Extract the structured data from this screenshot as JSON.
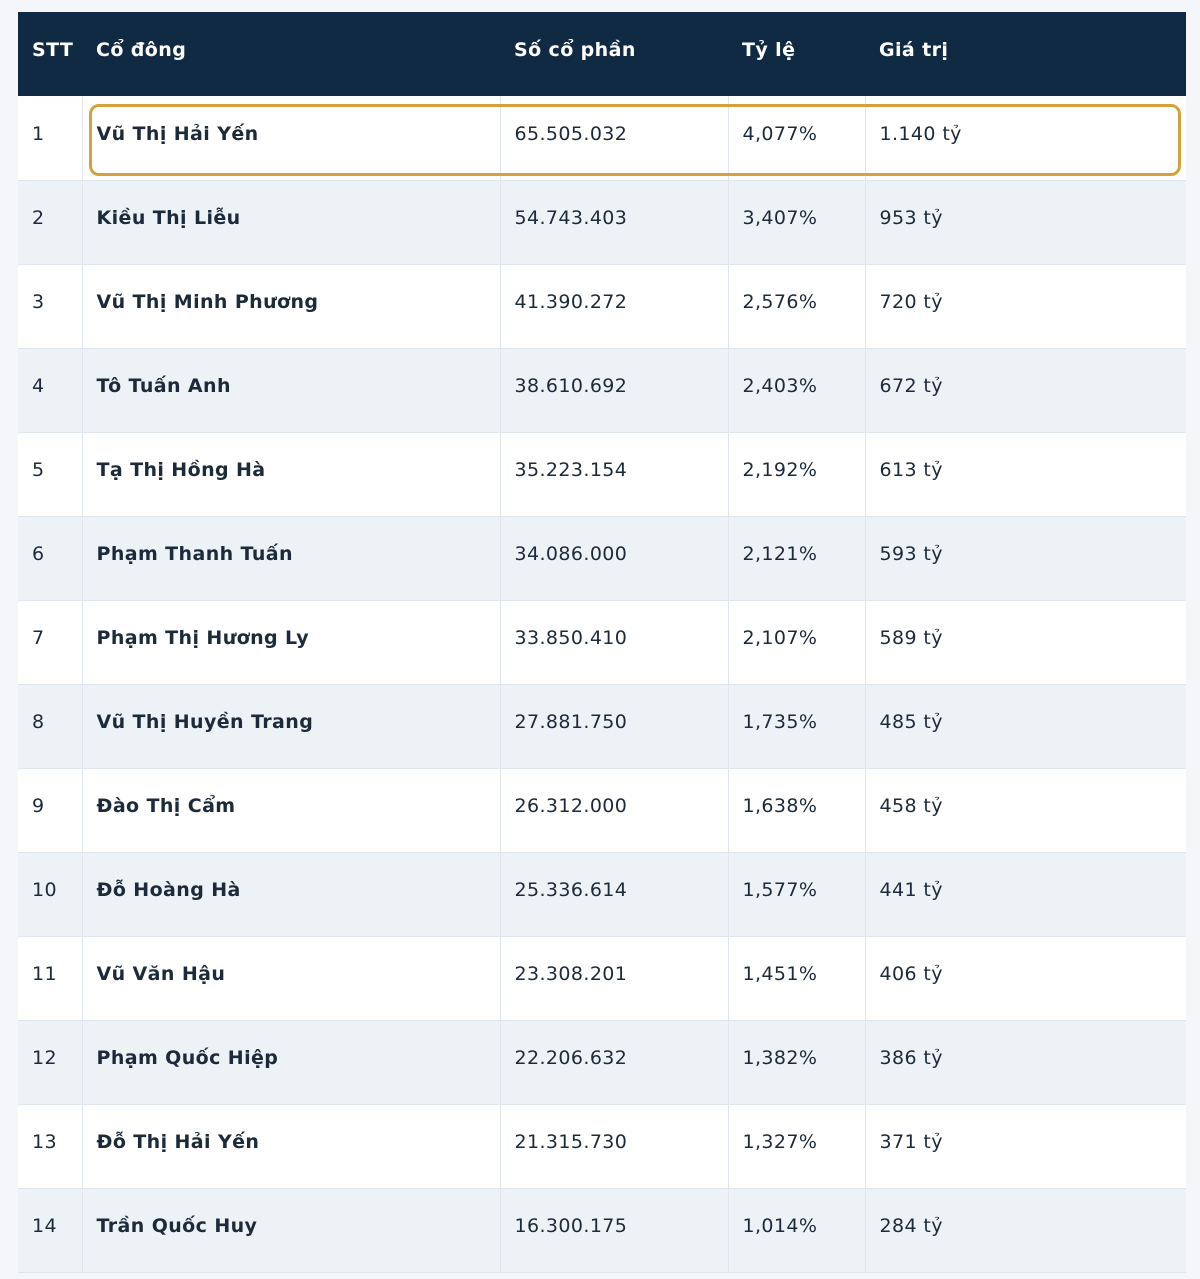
{
  "table": {
    "headers": {
      "stt": "STT",
      "name": "Cổ đông",
      "shares": "Số cổ phần",
      "ratio": "Tỷ lệ",
      "value": "Giá trị"
    },
    "highlight_color": "#d4a13a",
    "header_bg": "#112a44",
    "rows": [
      {
        "stt": "1",
        "name": "Vũ Thị Hải Yến",
        "shares": "65.505.032",
        "ratio": "4,077%",
        "value": "1.140 tỷ"
      },
      {
        "stt": "2",
        "name": "Kiều Thị Liễu",
        "shares": "54.743.403",
        "ratio": "3,407%",
        "value": "953 tỷ"
      },
      {
        "stt": "3",
        "name": "Vũ Thị Minh Phương",
        "shares": "41.390.272",
        "ratio": "2,576%",
        "value": "720 tỷ"
      },
      {
        "stt": "4",
        "name": "Tô Tuấn Anh",
        "shares": "38.610.692",
        "ratio": "2,403%",
        "value": "672 tỷ"
      },
      {
        "stt": "5",
        "name": "Tạ Thị Hồng Hà",
        "shares": "35.223.154",
        "ratio": "2,192%",
        "value": "613 tỷ"
      },
      {
        "stt": "6",
        "name": "Phạm Thanh Tuấn",
        "shares": "34.086.000",
        "ratio": "2,121%",
        "value": "593 tỷ"
      },
      {
        "stt": "7",
        "name": "Phạm Thị Hương Ly",
        "shares": "33.850.410",
        "ratio": "2,107%",
        "value": "589 tỷ"
      },
      {
        "stt": "8",
        "name": "Vũ Thị Huyền Trang",
        "shares": "27.881.750",
        "ratio": "1,735%",
        "value": "485 tỷ"
      },
      {
        "stt": "9",
        "name": "Đào Thị Cẩm",
        "shares": "26.312.000",
        "ratio": "1,638%",
        "value": "458 tỷ"
      },
      {
        "stt": "10",
        "name": "Đỗ Hoàng Hà",
        "shares": "25.336.614",
        "ratio": "1,577%",
        "value": "441 tỷ"
      },
      {
        "stt": "11",
        "name": "Vũ Văn Hậu",
        "shares": "23.308.201",
        "ratio": "1,451%",
        "value": "406 tỷ"
      },
      {
        "stt": "12",
        "name": "Phạm Quốc Hiệp",
        "shares": "22.206.632",
        "ratio": "1,382%",
        "value": "386 tỷ"
      },
      {
        "stt": "13",
        "name": "Đỗ Thị Hải Yến",
        "shares": "21.315.730",
        "ratio": "1,327%",
        "value": "371 tỷ"
      },
      {
        "stt": "14",
        "name": "Trần Quốc Huy",
        "shares": "16.300.175",
        "ratio": "1,014%",
        "value": "284 tỷ"
      }
    ]
  }
}
